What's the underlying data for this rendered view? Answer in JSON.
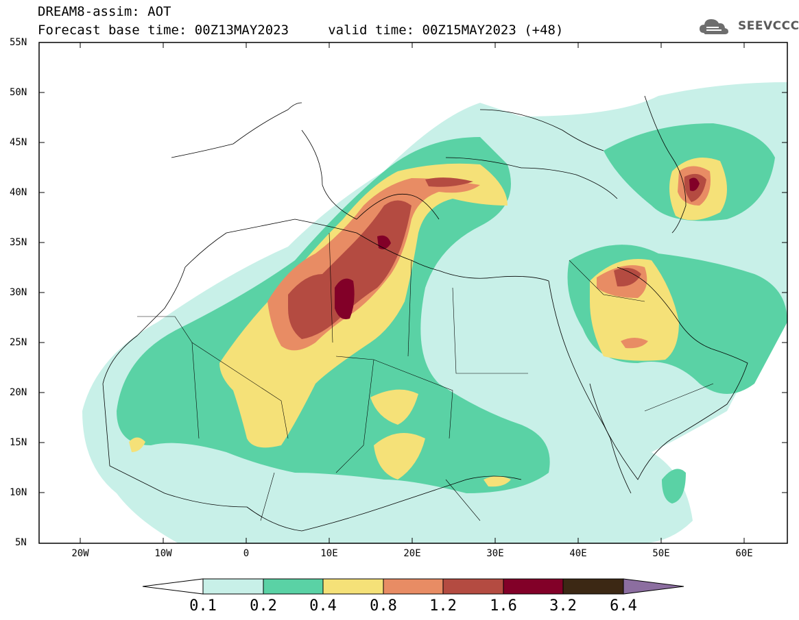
{
  "header": {
    "title_line1": "DREAM8-assim: AOT",
    "title_line2": "Forecast base time: 00Z13MAY2023     valid time: 00Z15MAY2023 (+48)",
    "logo_text": "SEEVCCC"
  },
  "axes": {
    "lat_labels": [
      "55N",
      "50N",
      "45N",
      "40N",
      "35N",
      "30N",
      "25N",
      "20N",
      "15N",
      "10N",
      "5N"
    ],
    "lon_labels": [
      "20W",
      "10W",
      "0",
      "10E",
      "20E",
      "30E",
      "40E",
      "50E",
      "60E"
    ]
  },
  "colorbar": {
    "labels": [
      "0.1",
      "0.2",
      "0.4",
      "0.8",
      "1.2",
      "1.6",
      "3.2",
      "6.4"
    ],
    "colors": [
      "#ffffff",
      "#c8f0e8",
      "#5ad2a5",
      "#f5e178",
      "#e88c64",
      "#b44b41",
      "#820028",
      "#3c2814",
      "#8c6ea0"
    ]
  },
  "colors": {
    "coast": "#000000",
    "frame": "#000000",
    "background": "#ffffff"
  }
}
